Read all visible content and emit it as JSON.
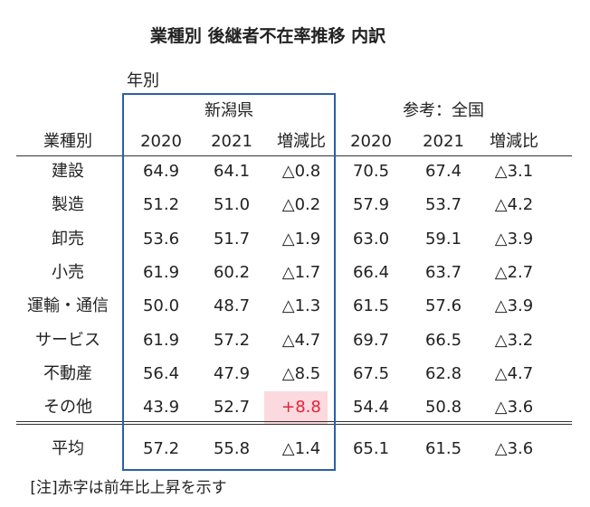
{
  "title": "業種別 後継者不在率推移 内訳",
  "year_label": "年別",
  "groups": [
    "新潟県",
    "参考：全国"
  ],
  "columns": [
    "業種別",
    "2020",
    "2021",
    "増減比",
    "2020",
    "2021",
    "増減比"
  ],
  "rows": [
    [
      "建設",
      "64.9",
      "64.1",
      "△0.8",
      "70.5",
      "67.4",
      "△3.1"
    ],
    [
      "製造",
      "51.2",
      "51.0",
      "△0.2",
      "57.9",
      "53.7",
      "△4.2"
    ],
    [
      "卸売",
      "53.6",
      "51.7",
      "△1.9",
      "63.0",
      "59.1",
      "△3.9"
    ],
    [
      "小売",
      "61.9",
      "60.2",
      "△1.7",
      "66.4",
      "63.7",
      "△2.7"
    ],
    [
      "運輸・通信",
      "50.0",
      "48.7",
      "△1.3",
      "61.5",
      "57.6",
      "△3.9"
    ],
    [
      "サービス",
      "61.9",
      "57.2",
      "△4.7",
      "69.7",
      "66.5",
      "△3.2"
    ],
    [
      "不動産",
      "56.4",
      "47.9",
      "△8.5",
      "67.5",
      "62.8",
      "△4.7"
    ],
    [
      "その他",
      "43.9",
      "52.7",
      "+8.8",
      "54.4",
      "50.8",
      "△3.6"
    ]
  ],
  "average": [
    "平均",
    "57.2",
    "55.8",
    "△1.4",
    "65.1",
    "61.5",
    "△3.6"
  ],
  "note": "[注]赤字は前年比上昇を示す"
}
